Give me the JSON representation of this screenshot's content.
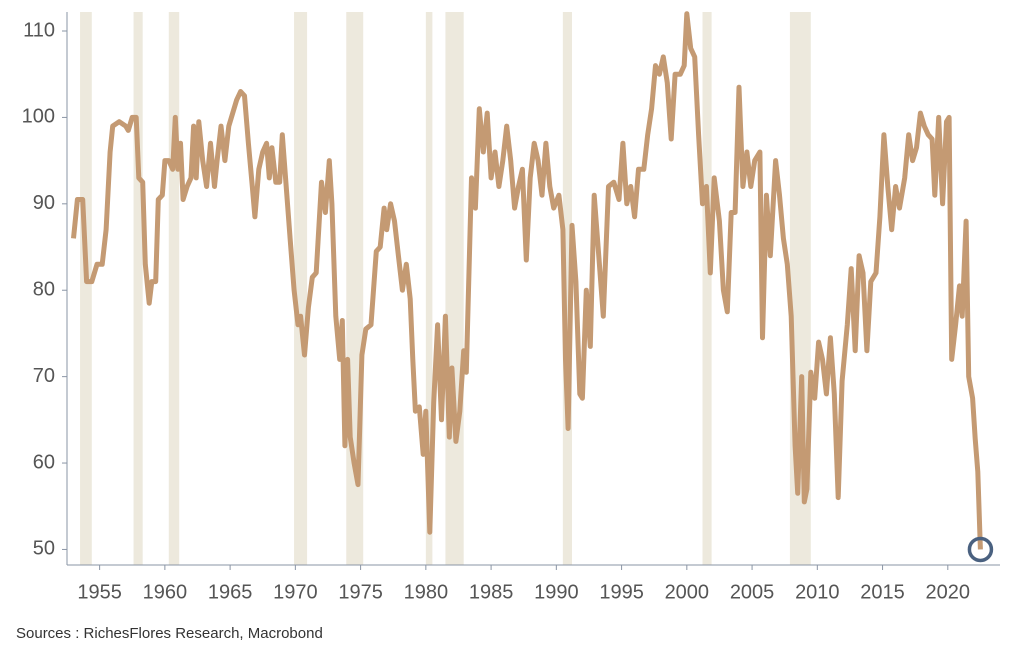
{
  "chart_data": {
    "type": "line",
    "source": "Sources : RichesFlores Research, Macrobond",
    "xlim": [
      1952.5,
      2024
    ],
    "ylim": [
      48.2,
      112.2
    ],
    "xticks": [
      1955,
      1960,
      1965,
      1970,
      1975,
      1980,
      1985,
      1990,
      1995,
      2000,
      2005,
      2010,
      2015,
      2020
    ],
    "yticks": [
      50,
      60,
      70,
      80,
      90,
      100,
      110
    ],
    "shaded_periods": [
      [
        1953.5,
        1954.4
      ],
      [
        1957.6,
        1958.3
      ],
      [
        1960.3,
        1961.1
      ],
      [
        1969.9,
        1970.9
      ],
      [
        1973.9,
        1975.2
      ],
      [
        1980.0,
        1980.5
      ],
      [
        1981.5,
        1982.9
      ],
      [
        1990.5,
        1991.2
      ],
      [
        2001.2,
        2001.9
      ],
      [
        2007.9,
        2009.5
      ]
    ],
    "shade_color": "#ede9dd",
    "color": "#c49a73",
    "marker_color": "#4a6180",
    "x": [
      1953.0,
      1953.3,
      1953.7,
      1954.0,
      1954.4,
      1954.8,
      1955.2,
      1955.5,
      1955.8,
      1956.0,
      1956.5,
      1957.0,
      1957.2,
      1957.5,
      1957.8,
      1958.0,
      1958.3,
      1958.5,
      1958.8,
      1959.0,
      1959.3,
      1959.5,
      1959.8,
      1960.0,
      1960.3,
      1960.6,
      1960.8,
      1961.0,
      1961.2,
      1961.4,
      1961.7,
      1962.0,
      1962.2,
      1962.4,
      1962.6,
      1962.9,
      1963.2,
      1963.5,
      1963.8,
      1964.0,
      1964.3,
      1964.6,
      1964.9,
      1965.2,
      1965.5,
      1965.8,
      1966.1,
      1966.4,
      1966.7,
      1966.9,
      1967.2,
      1967.5,
      1967.8,
      1968.0,
      1968.2,
      1968.5,
      1968.8,
      1969.0,
      1969.3,
      1969.6,
      1969.9,
      1970.2,
      1970.4,
      1970.7,
      1971.0,
      1971.3,
      1971.6,
      1972.0,
      1972.3,
      1972.6,
      1972.8,
      1973.1,
      1973.4,
      1973.6,
      1973.8,
      1974.0,
      1974.2,
      1974.5,
      1974.8,
      1975.1,
      1975.4,
      1975.8,
      1976.2,
      1976.5,
      1976.8,
      1977.0,
      1977.3,
      1977.6,
      1977.9,
      1978.2,
      1978.5,
      1978.8,
      1979.0,
      1979.2,
      1979.5,
      1979.8,
      1980.0,
      1980.3,
      1980.6,
      1980.9,
      1981.2,
      1981.5,
      1981.8,
      1982.0,
      1982.3,
      1982.6,
      1982.9,
      1983.1,
      1983.5,
      1983.8,
      1984.1,
      1984.4,
      1984.7,
      1985.0,
      1985.3,
      1985.6,
      1985.9,
      1986.2,
      1986.5,
      1986.8,
      1987.1,
      1987.4,
      1987.7,
      1988.0,
      1988.3,
      1988.6,
      1988.9,
      1989.2,
      1989.5,
      1989.8,
      1990.2,
      1990.5,
      1990.7,
      1990.9,
      1991.2,
      1991.5,
      1991.8,
      1992.0,
      1992.3,
      1992.6,
      1992.9,
      1993.2,
      1993.6,
      1994.0,
      1994.4,
      1994.8,
      1995.1,
      1995.4,
      1995.7,
      1996.0,
      1996.3,
      1996.7,
      1997.0,
      1997.3,
      1997.6,
      1997.9,
      1998.2,
      1998.5,
      1998.8,
      1999.1,
      1999.5,
      1999.8,
      2000.0,
      2000.3,
      2000.6,
      2000.9,
      2001.2,
      2001.5,
      2001.8,
      2002.1,
      2002.5,
      2002.8,
      2003.1,
      2003.4,
      2003.7,
      2004.0,
      2004.3,
      2004.6,
      2004.9,
      2005.2,
      2005.6,
      2005.8,
      2006.1,
      2006.4,
      2006.8,
      2007.1,
      2007.4,
      2007.7,
      2008.0,
      2008.3,
      2008.5,
      2008.8,
      2009.0,
      2009.2,
      2009.5,
      2009.8,
      2010.1,
      2010.4,
      2010.7,
      2011.0,
      2011.3,
      2011.6,
      2011.9,
      2012.3,
      2012.6,
      2012.9,
      2013.2,
      2013.5,
      2013.8,
      2014.1,
      2014.5,
      2014.8,
      2015.1,
      2015.4,
      2015.7,
      2016.0,
      2016.3,
      2016.7,
      2017.0,
      2017.3,
      2017.6,
      2017.9,
      2018.2,
      2018.5,
      2018.8,
      2019.0,
      2019.3,
      2019.6,
      2019.9,
      2020.1,
      2020.3,
      2020.6,
      2020.9,
      2021.1,
      2021.4,
      2021.6,
      2021.9,
      2022.1,
      2022.3,
      2022.5
    ],
    "values": [
      86,
      90.5,
      90.5,
      81,
      81,
      83,
      83,
      87,
      96,
      99,
      99.5,
      99,
      98.5,
      100,
      100,
      93,
      92.5,
      83,
      78.5,
      81,
      81,
      90.5,
      91,
      95,
      95,
      94,
      100,
      94,
      97,
      90.5,
      92,
      93,
      99,
      93,
      99.5,
      95,
      92,
      97,
      92,
      95,
      99,
      95,
      99,
      100.5,
      102,
      103,
      102.5,
      97,
      92,
      88.5,
      94,
      96,
      97,
      93,
      96.5,
      92.5,
      92.5,
      98,
      92,
      86,
      80,
      76,
      77,
      72.5,
      78,
      81.5,
      82,
      92.5,
      89,
      95,
      90,
      77,
      72,
      76.5,
      62,
      72,
      63,
      60,
      57.5,
      72.5,
      75.5,
      76,
      84.5,
      85,
      89.5,
      87,
      90,
      88,
      84,
      80,
      83,
      79,
      72,
      66,
      66.5,
      61,
      66,
      52,
      67,
      76,
      65,
      77,
      63,
      71,
      62.5,
      66,
      73,
      70.5,
      93,
      89.5,
      101,
      96,
      100.5,
      93,
      96,
      92,
      95,
      99,
      95,
      89.5,
      92,
      94,
      83.5,
      93,
      97,
      95,
      91,
      97,
      92,
      89.5,
      91,
      87,
      72,
      64,
      87.5,
      81,
      68,
      67.5,
      80,
      73.5,
      91,
      85,
      77,
      92,
      92.5,
      90.5,
      97,
      90,
      92,
      88.5,
      94,
      94,
      98,
      101,
      106,
      105,
      107,
      104,
      97.5,
      105,
      105,
      106,
      112,
      108,
      107,
      98,
      90,
      92,
      82,
      93,
      88,
      80,
      77.5,
      89,
      89,
      103.5,
      92,
      96,
      92,
      95,
      96,
      74.5,
      91,
      84,
      95,
      91,
      86,
      83,
      77,
      62,
      56.5,
      70,
      55.5,
      57,
      70.5,
      67.5,
      74,
      72,
      68,
      74.5,
      68,
      56,
      69.5,
      76,
      82.5,
      73,
      84,
      82,
      73,
      81,
      82,
      88.5,
      98,
      92,
      87,
      92,
      89.5,
      93,
      98,
      95,
      96.5,
      100.5,
      99,
      98,
      97.5,
      91,
      100,
      90,
      99.5,
      100,
      72,
      76,
      80.5,
      77,
      88,
      70,
      67.5,
      62.8,
      59,
      50
    ]
  }
}
